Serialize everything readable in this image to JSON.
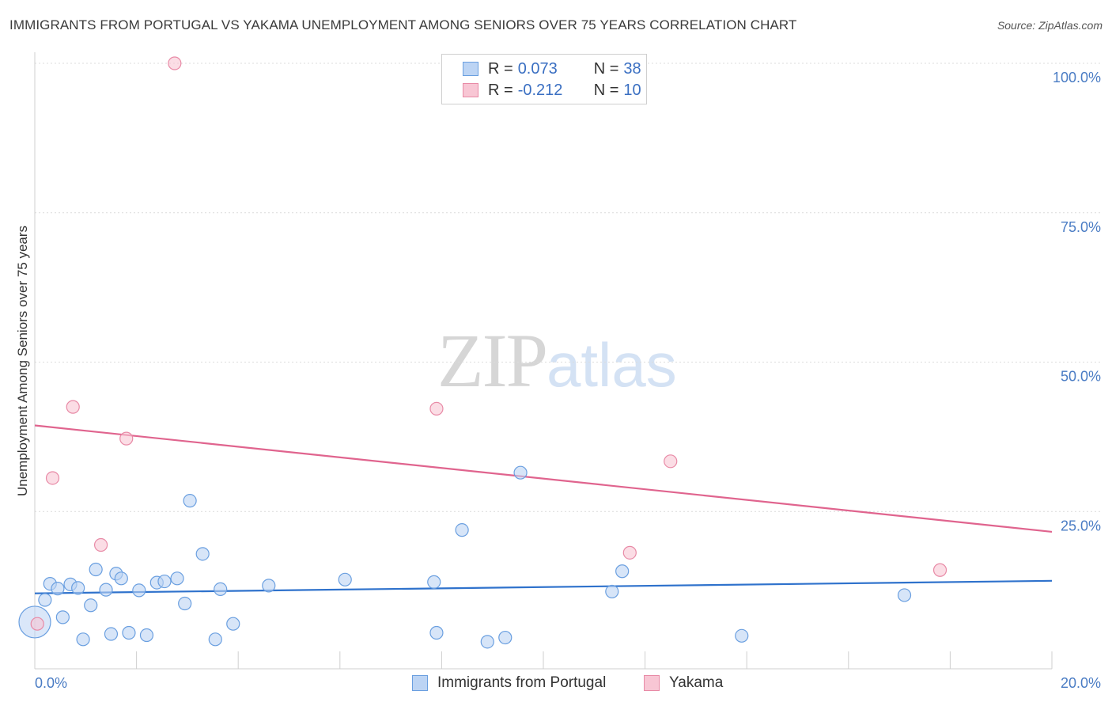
{
  "header": {
    "title": "IMMIGRANTS FROM PORTUGAL VS YAKAMA UNEMPLOYMENT AMONG SENIORS OVER 75 YEARS CORRELATION CHART",
    "source": "Source: ZipAtlas.com"
  },
  "watermark": {
    "zip": "ZIP",
    "atlas": "atlas"
  },
  "legend": {
    "r_label": "R =",
    "n_label": "N =",
    "series": [
      {
        "r": "0.073",
        "n": "38"
      },
      {
        "r": "-0.212",
        "n": "10"
      }
    ]
  },
  "chart_data": {
    "type": "scatter",
    "title": "IMMIGRANTS FROM PORTUGAL VS YAKAMA UNEMPLOYMENT AMONG SENIORS OVER 75 YEARS CORRELATION CHART",
    "xlabel": "",
    "ylabel": "Unemployment Among Seniors over 75 years",
    "xlim": [
      0,
      20
    ],
    "ylim": [
      0,
      100
    ],
    "x_ticks": [
      "0.0%",
      "20.0%"
    ],
    "y_ticks": [
      "25.0%",
      "50.0%",
      "75.0%",
      "100.0%"
    ],
    "y_tick_values": [
      25,
      50,
      75,
      100
    ],
    "legend_position": "top-center",
    "series": [
      {
        "name": "Immigrants from Portugal",
        "color": "#6a9fe0",
        "fill": "#bcd4f4",
        "trend": {
          "x": [
            0,
            20
          ],
          "y": [
            11.3,
            13.4
          ]
        },
        "points": [
          {
            "x": 0.0,
            "y": 6.5,
            "big": true
          },
          {
            "x": 0.2,
            "y": 10.2
          },
          {
            "x": 0.3,
            "y": 12.9
          },
          {
            "x": 0.45,
            "y": 12.1
          },
          {
            "x": 0.55,
            "y": 7.3
          },
          {
            "x": 0.7,
            "y": 12.8
          },
          {
            "x": 0.85,
            "y": 12.2
          },
          {
            "x": 0.95,
            "y": 3.6
          },
          {
            "x": 1.1,
            "y": 9.3
          },
          {
            "x": 1.2,
            "y": 15.3
          },
          {
            "x": 1.4,
            "y": 11.9
          },
          {
            "x": 1.5,
            "y": 4.5
          },
          {
            "x": 1.6,
            "y": 14.6
          },
          {
            "x": 1.7,
            "y": 13.8
          },
          {
            "x": 1.85,
            "y": 4.7
          },
          {
            "x": 2.05,
            "y": 11.8
          },
          {
            "x": 2.2,
            "y": 4.3
          },
          {
            "x": 2.4,
            "y": 13.1
          },
          {
            "x": 2.55,
            "y": 13.3
          },
          {
            "x": 2.8,
            "y": 13.8
          },
          {
            "x": 2.95,
            "y": 9.6
          },
          {
            "x": 3.05,
            "y": 26.8
          },
          {
            "x": 3.3,
            "y": 17.9
          },
          {
            "x": 3.55,
            "y": 3.6
          },
          {
            "x": 3.65,
            "y": 12.0
          },
          {
            "x": 3.9,
            "y": 6.2
          },
          {
            "x": 4.6,
            "y": 12.6
          },
          {
            "x": 6.1,
            "y": 13.6
          },
          {
            "x": 7.85,
            "y": 13.2
          },
          {
            "x": 7.9,
            "y": 4.7
          },
          {
            "x": 8.4,
            "y": 21.9
          },
          {
            "x": 8.9,
            "y": 3.2
          },
          {
            "x": 9.25,
            "y": 3.9
          },
          {
            "x": 9.55,
            "y": 31.5
          },
          {
            "x": 11.35,
            "y": 11.6
          },
          {
            "x": 11.55,
            "y": 15.0
          },
          {
            "x": 13.9,
            "y": 4.2
          },
          {
            "x": 17.1,
            "y": 11.0
          }
        ]
      },
      {
        "name": "Yakama",
        "color": "#e88aa6",
        "fill": "#f8c6d4",
        "trend": {
          "x": [
            0,
            20
          ],
          "y": [
            39.4,
            21.6
          ]
        },
        "points": [
          {
            "x": 0.05,
            "y": 6.2
          },
          {
            "x": 0.35,
            "y": 30.6
          },
          {
            "x": 0.75,
            "y": 42.5
          },
          {
            "x": 1.3,
            "y": 19.4
          },
          {
            "x": 1.8,
            "y": 37.2
          },
          {
            "x": 2.75,
            "y": 100.0
          },
          {
            "x": 7.9,
            "y": 42.2
          },
          {
            "x": 11.7,
            "y": 18.1
          },
          {
            "x": 12.5,
            "y": 33.4
          },
          {
            "x": 17.8,
            "y": 15.2
          }
        ]
      }
    ]
  }
}
